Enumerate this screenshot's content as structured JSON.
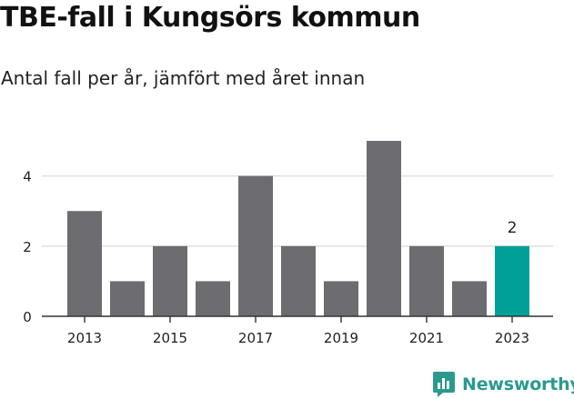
{
  "header": {
    "title": "TBE-fall i Kungsörs kommun",
    "subtitle": "Antal fall per år, jämfört med året innan"
  },
  "brand": {
    "name": "Newsworthy",
    "icon": "newsworthy-logo-icon",
    "color": "#2a9a8e"
  },
  "colors": {
    "bar": "#6d6c70",
    "highlight": "#00a096",
    "grid": "#dddddd",
    "axis": "#333333"
  },
  "chart_data": {
    "type": "bar",
    "categories": [
      "2013",
      "2014",
      "2015",
      "2016",
      "2017",
      "2018",
      "2019",
      "2020",
      "2021",
      "2022",
      "2023"
    ],
    "values": [
      3,
      1,
      2,
      1,
      4,
      2,
      1,
      5,
      2,
      1,
      2
    ],
    "x_tick_labels": [
      "2013",
      "2015",
      "2017",
      "2019",
      "2021",
      "2023"
    ],
    "y_ticks": [
      0,
      2,
      4
    ],
    "ylim": [
      0,
      5
    ],
    "grid": true,
    "highlight_category": "2023",
    "data_labels": [
      {
        "category": "2023",
        "text": "2"
      }
    ],
    "title": "TBE-fall i Kungsörs kommun",
    "subtitle": "Antal fall per år, jämfört med året innan",
    "xlabel": "",
    "ylabel": ""
  }
}
